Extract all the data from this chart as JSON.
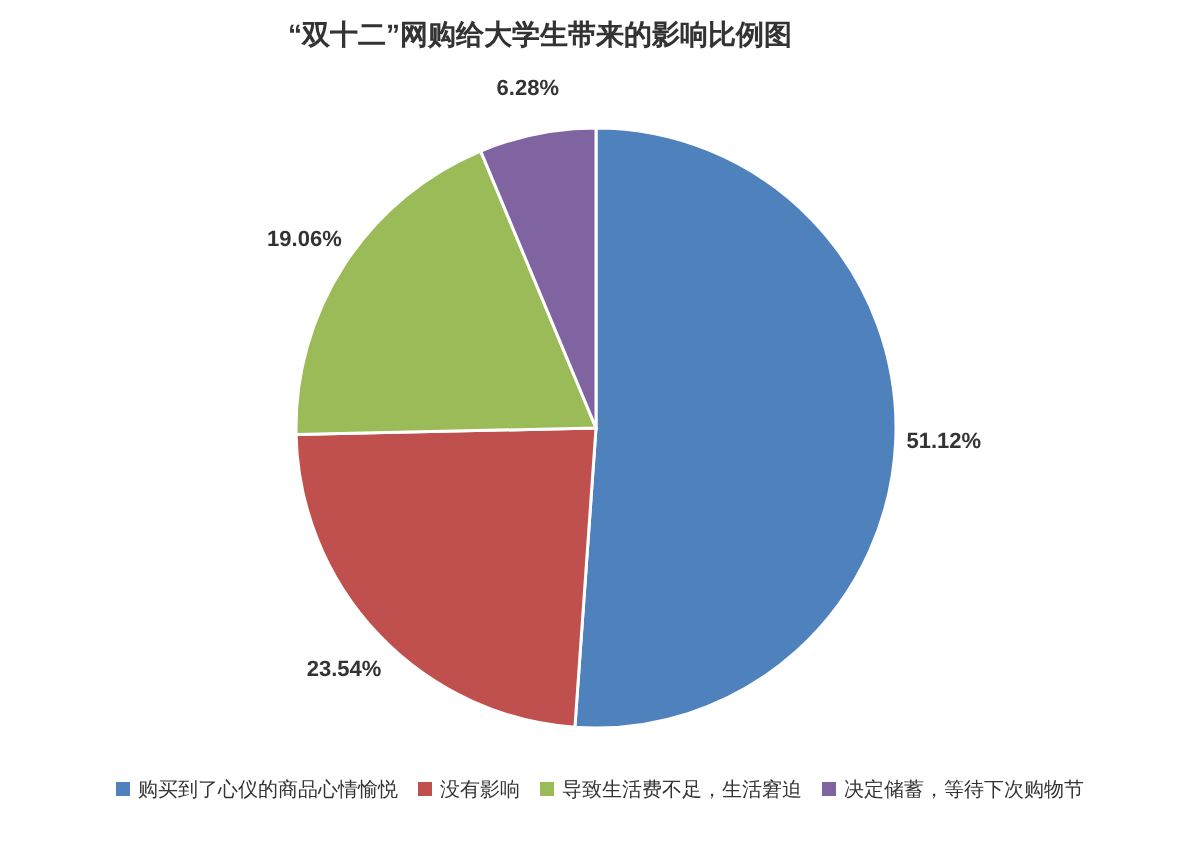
{
  "chart_data": {
    "type": "pie",
    "title": "“双十二”网购给大学生带来的影响比例图",
    "categories": [
      "购买到了心仪的商品心情愉悦",
      "没有影响",
      "导致生活费不足，生活窘迫",
      "决定储蓄，等待下次购物节"
    ],
    "values": [
      51.12,
      23.54,
      19.06,
      6.28
    ],
    "colors": [
      "#4f81bd",
      "#c0504d",
      "#9bbb59",
      "#8064a2"
    ],
    "value_labels": [
      "51.12%",
      "23.54%",
      "19.06%",
      "6.28%"
    ],
    "legend": "bottom"
  }
}
